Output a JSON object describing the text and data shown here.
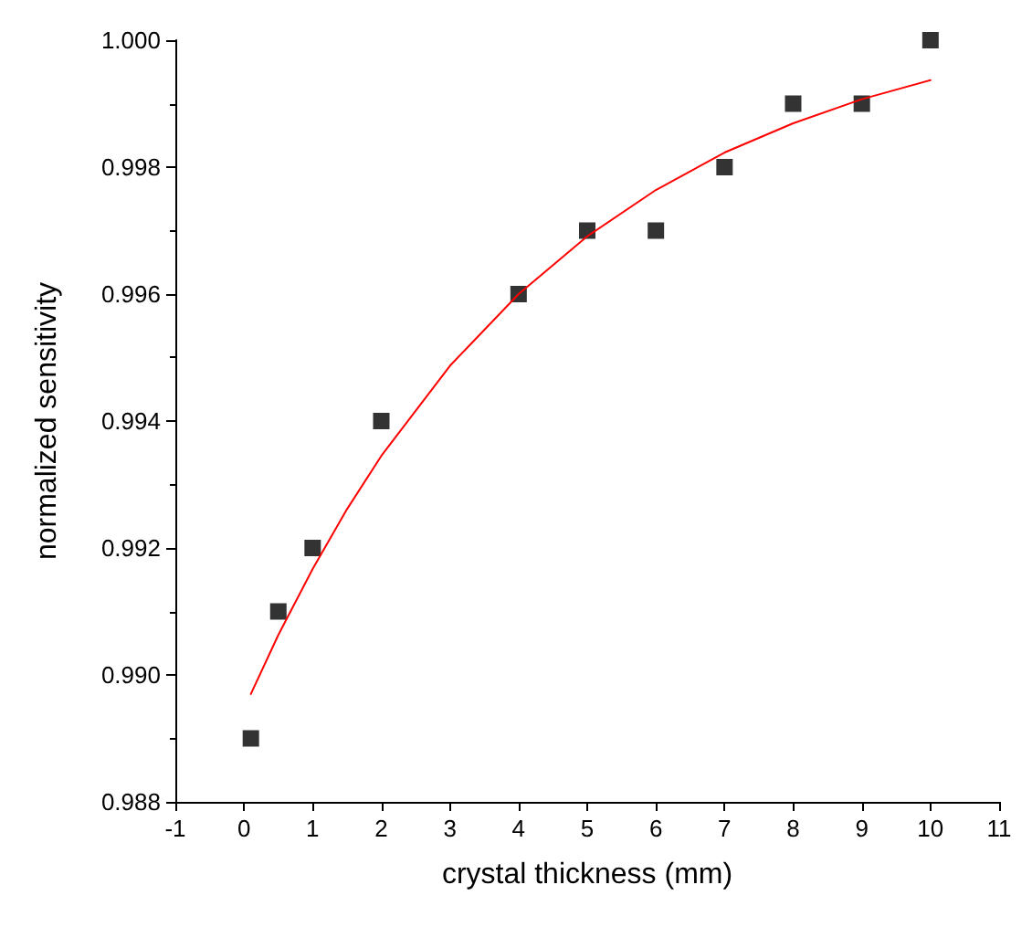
{
  "chart_data": {
    "type": "scatter",
    "xlabel": "crystal thickness (mm)",
    "ylabel": "normalized sensitivity",
    "xlim": [
      -1,
      11
    ],
    "xticks": [
      -1,
      0,
      1,
      2,
      3,
      4,
      5,
      6,
      7,
      8,
      9,
      10,
      11
    ],
    "ylim": [
      0.988,
      1.0
    ],
    "yticks": [
      {
        "value": 0.988,
        "label": "0.988"
      },
      {
        "value": 0.99,
        "label": "0.990"
      },
      {
        "value": 0.992,
        "label": "0.992"
      },
      {
        "value": 0.994,
        "label": "0.994"
      },
      {
        "value": 0.996,
        "label": "0.996"
      },
      {
        "value": 0.998,
        "label": "0.998"
      },
      {
        "value": 1.0,
        "label": "1.000"
      }
    ],
    "marker": "square",
    "series": [
      {
        "color": "#000000",
        "x": [
          0.1,
          0.5,
          1,
          2,
          4,
          5,
          6,
          7,
          8,
          9,
          10
        ],
        "values": [
          0.989,
          0.991,
          0.992,
          0.994,
          0.996,
          0.997,
          0.997,
          0.998,
          0.999,
          0.999,
          1.0
        ]
      },
      {
        "type": "line",
        "color": "#ff0000",
        "marker": "none",
        "x": [
          0.1,
          0.5,
          1,
          1.5,
          2,
          3,
          4,
          5,
          6,
          7,
          8,
          9,
          10
        ],
        "values": [
          0.9897,
          0.99063,
          0.99167,
          0.99261,
          0.99345,
          0.99487,
          0.996,
          0.99691,
          0.99764,
          0.99823,
          0.99869,
          0.99907,
          0.99937
        ]
      }
    ]
  }
}
